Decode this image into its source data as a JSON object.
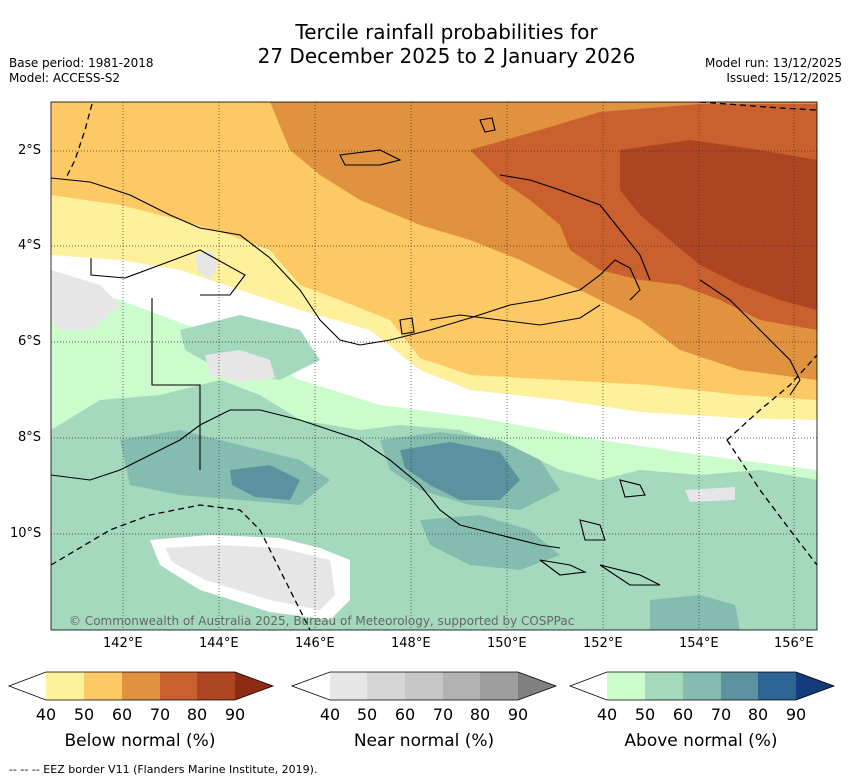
{
  "title_line1": "Tercile rainfall probabilities for",
  "title_line2": "27 December 2025 to 2 January 2026",
  "base_period": "Base period: 1981-2018",
  "model": "Model: ACCESS-S2",
  "model_run": "Model run: 13/12/2025",
  "issued": "Issued: 15/12/2025",
  "lat_labels": [
    "2°S",
    "4°S",
    "6°S",
    "8°S",
    "10°S"
  ],
  "lon_labels": [
    "142°E",
    "144°E",
    "146°E",
    "148°E",
    "150°E",
    "152°E",
    "154°E",
    "156°E"
  ],
  "copyright": "© Commonwealth of Australia 2025, Bureau of Meteorology, supported by COSPPac",
  "colorbars": [
    {
      "label": "Below normal (%)",
      "ticks": [
        "40",
        "50",
        "60",
        "70",
        "80",
        "90"
      ],
      "colors": [
        "#ffffff",
        "#fff09c",
        "#fcc964",
        "#e0923f",
        "#c9602e",
        "#ad4422",
        "#8c2c14"
      ]
    },
    {
      "label": "Near normal (%)",
      "ticks": [
        "40",
        "50",
        "60",
        "70",
        "80",
        "90"
      ],
      "colors": [
        "#ffffff",
        "#e6e6e6",
        "#d6d6d6",
        "#c6c6c6",
        "#b2b2b2",
        "#9e9e9e",
        "#808080"
      ]
    },
    {
      "label": "Above normal (%)",
      "ticks": [
        "40",
        "50",
        "60",
        "70",
        "80",
        "90"
      ],
      "colors": [
        "#ffffff",
        "#ccfccc",
        "#a4d9bd",
        "#84bdaf",
        "#5c92a0",
        "#2c6494",
        "#143c7c"
      ]
    }
  ],
  "footer": "--  --  -- EEZ border V11 (Flanders Marine Institute, 2019)."
}
